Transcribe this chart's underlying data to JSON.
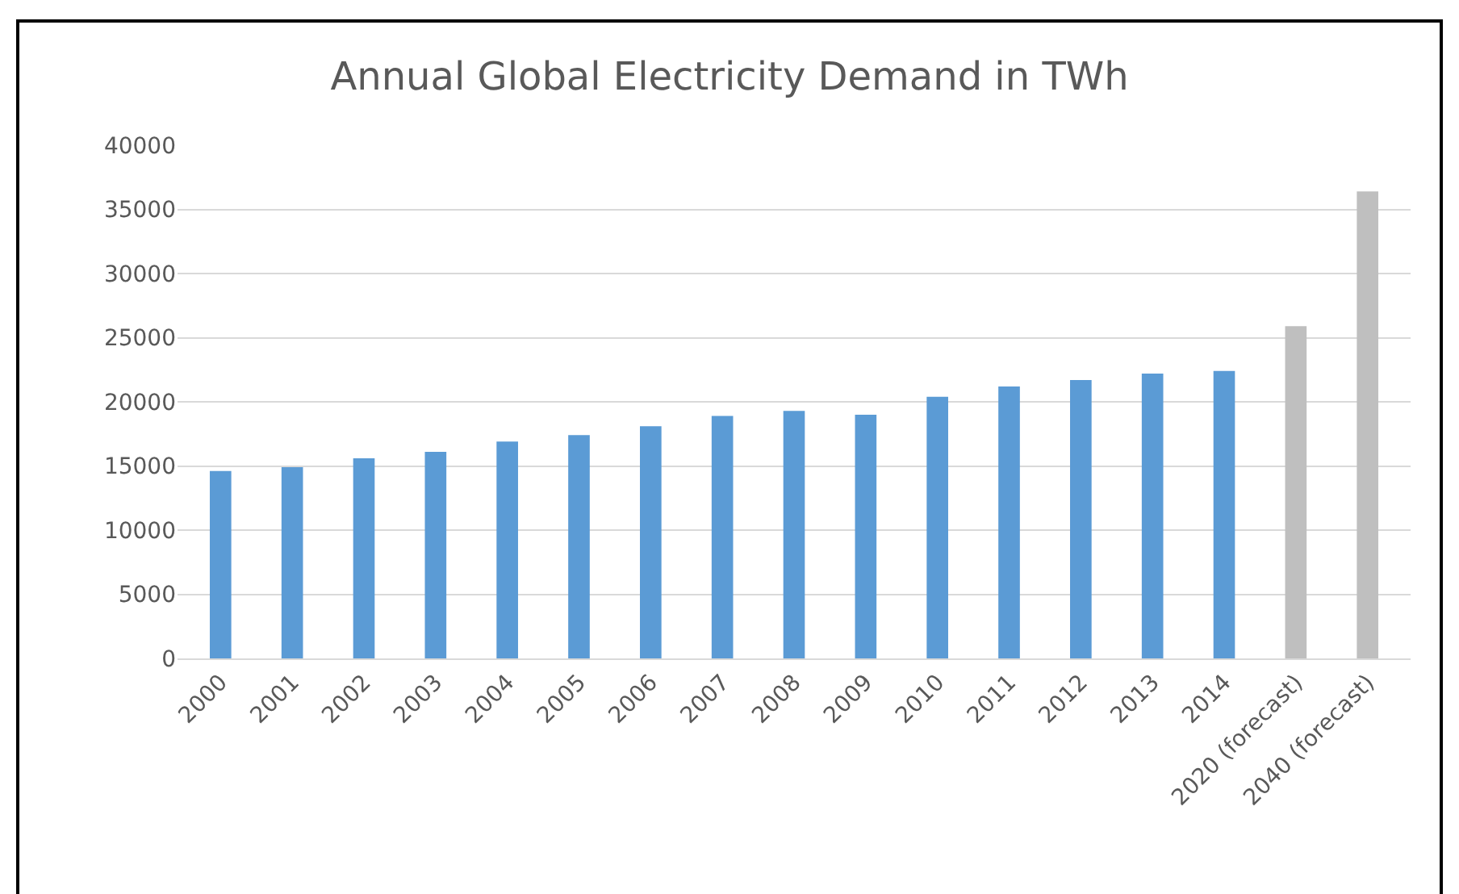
{
  "chart_data": {
    "type": "bar",
    "title": "Annual Global Electricity Demand in TWh",
    "categories": [
      "2000",
      "2001",
      "2002",
      "2003",
      "2004",
      "2005",
      "2006",
      "2007",
      "2008",
      "2009",
      "2010",
      "2011",
      "2012",
      "2013",
      "2014",
      "2020 (forecast)",
      "2040 (forecast)"
    ],
    "values": [
      14600,
      14900,
      15600,
      16100,
      16900,
      17400,
      18100,
      18900,
      19300,
      19000,
      20400,
      21200,
      21700,
      22200,
      22400,
      25900,
      36400
    ],
    "colors": [
      "#5b9bd5",
      "#5b9bd5",
      "#5b9bd5",
      "#5b9bd5",
      "#5b9bd5",
      "#5b9bd5",
      "#5b9bd5",
      "#5b9bd5",
      "#5b9bd5",
      "#5b9bd5",
      "#5b9bd5",
      "#5b9bd5",
      "#5b9bd5",
      "#5b9bd5",
      "#5b9bd5",
      "#bfbfbf",
      "#bfbfbf"
    ],
    "ylim": [
      0,
      40000
    ],
    "yticks": [
      0,
      5000,
      10000,
      15000,
      20000,
      25000,
      30000,
      35000,
      40000
    ],
    "grid": "y",
    "legend": false
  }
}
